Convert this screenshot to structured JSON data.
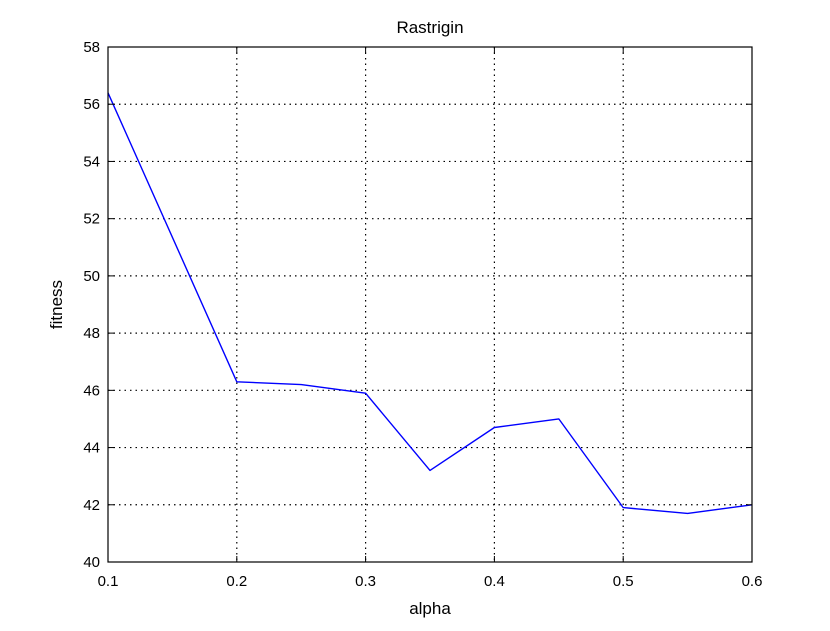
{
  "chart_data": {
    "type": "line",
    "title": "Rastrigin",
    "xlabel": "alpha",
    "ylabel": "fitness",
    "xlim": [
      0.1,
      0.6
    ],
    "ylim": [
      40,
      58
    ],
    "xticks": [
      0.1,
      0.2,
      0.3,
      0.4,
      0.5,
      0.6
    ],
    "yticks": [
      40,
      42,
      44,
      46,
      48,
      50,
      52,
      54,
      56,
      58
    ],
    "grid": true,
    "grid_style": "dotted",
    "series": [
      {
        "color": "#0000ff",
        "x": [
          0.1,
          0.2,
          0.25,
          0.3,
          0.35,
          0.4,
          0.45,
          0.5,
          0.55,
          0.6
        ],
        "y": [
          56.4,
          46.3,
          46.2,
          45.9,
          43.2,
          44.7,
          45.0,
          41.9,
          41.7,
          42.0
        ]
      }
    ]
  }
}
